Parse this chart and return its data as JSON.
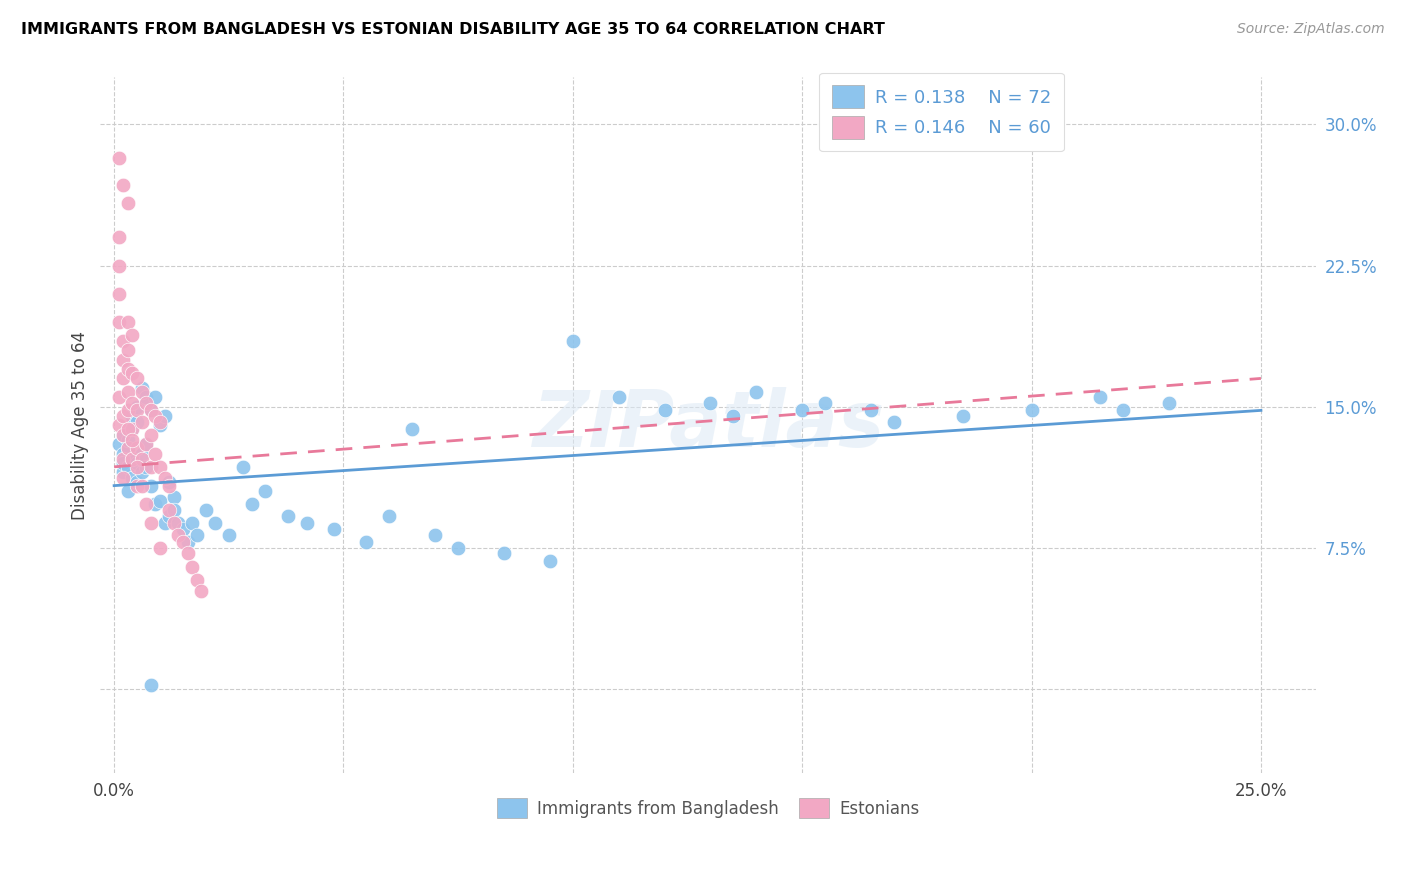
{
  "title": "IMMIGRANTS FROM BANGLADESH VS ESTONIAN DISABILITY AGE 35 TO 64 CORRELATION CHART",
  "source": "Source: ZipAtlas.com",
  "ylabel_label": "Disability Age 35 to 64",
  "xlim": [
    -0.003,
    0.262
  ],
  "ylim": [
    -0.045,
    0.325
  ],
  "legend_r1": "R = 0.138",
  "legend_n1": "N = 72",
  "legend_r2": "R = 0.146",
  "legend_n2": "N = 60",
  "color_blue": "#8DC4ED",
  "color_pink": "#F2A8C4",
  "line_blue": "#5B9BD5",
  "line_pink": "#E8799A",
  "blue_line_x0": 0.0,
  "blue_line_y0": 0.108,
  "blue_line_x1": 0.25,
  "blue_line_y1": 0.148,
  "pink_line_x0": 0.0,
  "pink_line_y0": 0.118,
  "pink_line_x1": 0.25,
  "pink_line_y1": 0.165,
  "blue_x": [
    0.001,
    0.002,
    0.002,
    0.002,
    0.002,
    0.003,
    0.003,
    0.003,
    0.003,
    0.004,
    0.004,
    0.004,
    0.004,
    0.005,
    0.005,
    0.005,
    0.005,
    0.006,
    0.006,
    0.006,
    0.007,
    0.007,
    0.007,
    0.008,
    0.008,
    0.009,
    0.009,
    0.01,
    0.01,
    0.011,
    0.011,
    0.012,
    0.012,
    0.013,
    0.013,
    0.014,
    0.015,
    0.016,
    0.017,
    0.018,
    0.02,
    0.022,
    0.025,
    0.028,
    0.03,
    0.033,
    0.038,
    0.042,
    0.048,
    0.055,
    0.06,
    0.065,
    0.07,
    0.075,
    0.085,
    0.095,
    0.1,
    0.11,
    0.12,
    0.13,
    0.135,
    0.14,
    0.15,
    0.155,
    0.165,
    0.17,
    0.185,
    0.2,
    0.215,
    0.22,
    0.23,
    0.008
  ],
  "blue_y": [
    0.13,
    0.125,
    0.135,
    0.115,
    0.12,
    0.128,
    0.118,
    0.132,
    0.105,
    0.145,
    0.138,
    0.112,
    0.122,
    0.15,
    0.142,
    0.11,
    0.12,
    0.16,
    0.115,
    0.125,
    0.155,
    0.118,
    0.13,
    0.148,
    0.108,
    0.155,
    0.098,
    0.14,
    0.1,
    0.145,
    0.088,
    0.11,
    0.092,
    0.102,
    0.095,
    0.088,
    0.085,
    0.078,
    0.088,
    0.082,
    0.095,
    0.088,
    0.082,
    0.118,
    0.098,
    0.105,
    0.092,
    0.088,
    0.085,
    0.078,
    0.092,
    0.138,
    0.082,
    0.075,
    0.072,
    0.068,
    0.185,
    0.155,
    0.148,
    0.152,
    0.145,
    0.158,
    0.148,
    0.152,
    0.148,
    0.142,
    0.145,
    0.148,
    0.155,
    0.148,
    0.152,
    0.002
  ],
  "pink_x": [
    0.001,
    0.001,
    0.001,
    0.001,
    0.001,
    0.001,
    0.002,
    0.002,
    0.002,
    0.002,
    0.002,
    0.002,
    0.002,
    0.003,
    0.003,
    0.003,
    0.003,
    0.003,
    0.003,
    0.004,
    0.004,
    0.004,
    0.004,
    0.004,
    0.005,
    0.005,
    0.005,
    0.005,
    0.006,
    0.006,
    0.006,
    0.007,
    0.007,
    0.008,
    0.008,
    0.008,
    0.009,
    0.009,
    0.01,
    0.01,
    0.011,
    0.012,
    0.012,
    0.013,
    0.014,
    0.015,
    0.016,
    0.017,
    0.018,
    0.019,
    0.001,
    0.002,
    0.003,
    0.003,
    0.004,
    0.005,
    0.006,
    0.007,
    0.008,
    0.01
  ],
  "pink_y": [
    0.24,
    0.225,
    0.21,
    0.195,
    0.155,
    0.14,
    0.185,
    0.175,
    0.165,
    0.145,
    0.135,
    0.122,
    0.112,
    0.195,
    0.18,
    0.17,
    0.158,
    0.148,
    0.128,
    0.188,
    0.168,
    0.152,
    0.138,
    0.122,
    0.165,
    0.148,
    0.128,
    0.108,
    0.158,
    0.142,
    0.122,
    0.152,
    0.13,
    0.148,
    0.135,
    0.118,
    0.145,
    0.125,
    0.142,
    0.118,
    0.112,
    0.108,
    0.095,
    0.088,
    0.082,
    0.078,
    0.072,
    0.065,
    0.058,
    0.052,
    0.282,
    0.268,
    0.258,
    0.138,
    0.132,
    0.118,
    0.108,
    0.098,
    0.088,
    0.075
  ]
}
